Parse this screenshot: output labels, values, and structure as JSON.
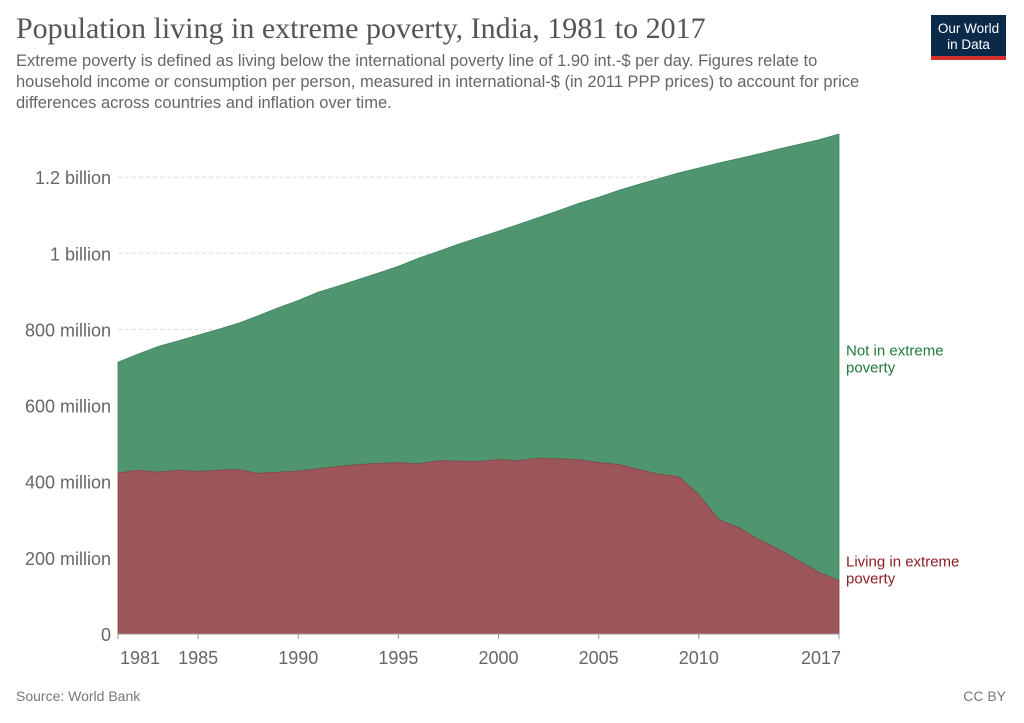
{
  "title": "Population living in extreme poverty, India, 1981 to 2017",
  "subtitle": "Extreme poverty is defined as living below the international poverty line of 1.90 int.-$ per day. Figures relate to household income or consumption per person, measured in international-$ (in 2011 PPP prices) to account for price differences across countries and inflation over time.",
  "logo": {
    "line1": "Our World",
    "line2": "in Data"
  },
  "source": "Source: World Bank",
  "license": "CC BY",
  "colors": {
    "not_poverty": "#4f9670",
    "poverty": "#9c5558",
    "not_poverty_label": "#1f7a3c",
    "poverty_label": "#8c1d22"
  },
  "chart_data": {
    "type": "area",
    "stacked": true,
    "x_ticks": [
      1981,
      1985,
      1990,
      1995,
      2000,
      2005,
      2010,
      2017
    ],
    "y_ticks": [
      {
        "value": 0,
        "label": "0"
      },
      {
        "value": 200000000,
        "label": "200 million"
      },
      {
        "value": 400000000,
        "label": "400 million"
      },
      {
        "value": 600000000,
        "label": "600 million"
      },
      {
        "value": 800000000,
        "label": "800 million"
      },
      {
        "value": 1000000000,
        "label": "1 billion"
      },
      {
        "value": 1200000000,
        "label": "1.2 billion"
      }
    ],
    "xlim": [
      1981,
      2017
    ],
    "ylim": [
      0,
      1350000000
    ],
    "grid": "horizontal dashed",
    "x": [
      1981,
      1982,
      1983,
      1984,
      1985,
      1986,
      1987,
      1988,
      1989,
      1990,
      1991,
      1992,
      1993,
      1994,
      1995,
      1996,
      1997,
      1998,
      1999,
      2000,
      2001,
      2002,
      2003,
      2004,
      2005,
      2006,
      2007,
      2008,
      2009,
      2010,
      2011,
      2012,
      2013,
      2014,
      2015,
      2016,
      2017
    ],
    "series": [
      {
        "name": "Living in extreme poverty",
        "label_lines": [
          "Living in extreme",
          "poverty"
        ],
        "values": [
          423,
          430,
          425,
          430,
          427,
          430,
          432,
          422,
          425,
          428,
          434,
          440,
          445,
          448,
          450,
          447,
          455,
          454,
          453,
          458,
          455,
          462,
          460,
          458,
          450,
          445,
          432,
          420,
          413,
          366,
          300,
          279,
          248,
          222,
          192,
          162,
          140
        ]
      },
      {
        "name": "Not in extreme poverty",
        "label_lines": [
          "Not in extreme",
          "poverty"
        ],
        "values": [
          291,
          305,
          330,
          340,
          358,
          370,
          384,
          414,
          432,
          448,
          464,
          474,
          486,
          500,
          516,
          540,
          550,
          570,
          588,
          600,
          621,
          632,
          652,
          673,
          697,
          720,
          749,
          776,
          798,
          858,
          937,
          970,
          1013,
          1052,
          1094,
          1136,
          1173
        ]
      }
    ],
    "value_unit": "million"
  }
}
